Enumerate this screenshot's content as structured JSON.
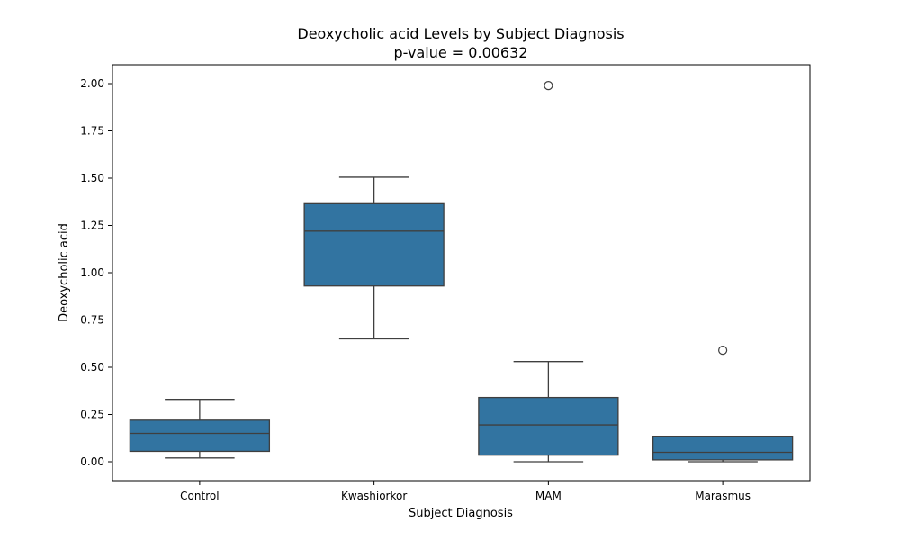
{
  "chart_data": {
    "type": "box",
    "title": "Deoxycholic acid Levels by Subject Diagnosis",
    "subtitle": "p-value = 0.00632",
    "xlabel": "Subject Diagnosis",
    "ylabel": "Deoxycholic acid",
    "ylim": [
      -0.1,
      2.1
    ],
    "yticks": [
      "0.00",
      "0.25",
      "0.50",
      "0.75",
      "1.00",
      "1.25",
      "1.50",
      "1.75",
      "2.00"
    ],
    "ytick_values": [
      0.0,
      0.25,
      0.5,
      0.75,
      1.0,
      1.25,
      1.5,
      1.75,
      2.0
    ],
    "grid": false,
    "box_color": "#3274a1",
    "line_color": "#3f3f3f",
    "categories": [
      "Control",
      "Kwashiorkor",
      "MAM",
      "Marasmus"
    ],
    "boxes": [
      {
        "category": "Control",
        "whisker_low": 0.02,
        "q1": 0.055,
        "median": 0.15,
        "q3": 0.22,
        "whisker_high": 0.33,
        "outliers": []
      },
      {
        "category": "Kwashiorkor",
        "whisker_low": 0.65,
        "q1": 0.93,
        "median": 1.22,
        "q3": 1.365,
        "whisker_high": 1.505,
        "outliers": []
      },
      {
        "category": "MAM",
        "whisker_low": 0.0,
        "q1": 0.035,
        "median": 0.195,
        "q3": 0.34,
        "whisker_high": 0.53,
        "outliers": [
          1.99
        ]
      },
      {
        "category": "Marasmus",
        "whisker_low": 0.0,
        "q1": 0.01,
        "median": 0.05,
        "q3": 0.135,
        "whisker_high": 0.135,
        "outliers": [
          0.59
        ]
      }
    ]
  }
}
